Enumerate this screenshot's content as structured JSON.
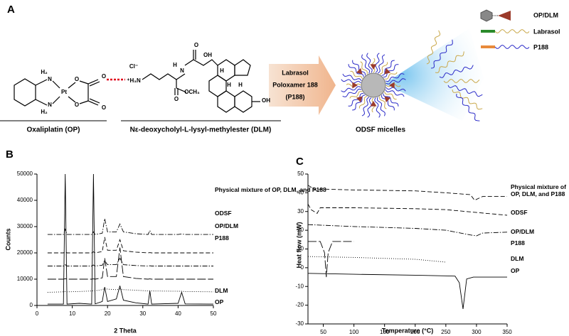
{
  "panel_a": {
    "label": "A",
    "op_caption": "Oxaliplatin (OP)",
    "dlm_caption": "Nε-deoxycholyl-L-lysyl-methylester (DLM)",
    "arrow_text": [
      "Labrasol",
      "Poloxamer 188",
      "(P188)"
    ],
    "micelle_caption": "ODSF micelles",
    "legend": [
      "OP/DLM",
      "Labrasol",
      "P188"
    ],
    "structure_labels": [
      "H₂",
      "N",
      "Pt",
      "N",
      "H₂",
      "O",
      "O",
      "O",
      "O",
      "Cl⁻",
      "⁺H₃N",
      "H",
      "N",
      "O",
      "O",
      "OCH₃",
      "OH",
      "OH",
      "H",
      "H",
      "H"
    ]
  },
  "panel_labels": [
    "B",
    "C"
  ],
  "chart_data": [
    {
      "type": "line",
      "xlabel": "2 Theta",
      "ylabel": "Counts",
      "xlim": [
        0,
        50
      ],
      "ylim": [
        0,
        50000
      ],
      "xticks": [
        0,
        10,
        20,
        30,
        40,
        50
      ],
      "yticks": [
        0,
        10000,
        20000,
        30000,
        40000,
        50000
      ],
      "x": [
        3,
        7.5,
        8,
        8.5,
        12,
        15.5,
        16,
        16.5,
        18.5,
        19.2,
        20,
        22.5,
        23.5,
        24.5,
        28,
        31.5,
        32,
        32.5,
        40,
        41,
        42,
        50
      ],
      "series": [
        {
          "name": "OP",
          "color": "#000000",
          "dash": "solid",
          "values": [
            500,
            500,
            50000,
            500,
            800,
            500,
            50000,
            600,
            1500,
            7000,
            1500,
            2500,
            7500,
            2000,
            1000,
            500,
            5500,
            500,
            800,
            5000,
            600,
            500
          ]
        },
        {
          "name": "DLM",
          "color": "#000000",
          "dash": "dotted",
          "values": [
            5000,
            5200,
            5300,
            5200,
            5300,
            5500,
            5600,
            5600,
            6000,
            6500,
            6200,
            6000,
            6300,
            6000,
            5800,
            5500,
            5600,
            5500,
            5400,
            5400,
            5300,
            5200
          ]
        },
        {
          "name": "P188",
          "color": "#000000",
          "dash": "longdash",
          "values": [
            10000,
            10000,
            10200,
            10000,
            10000,
            10000,
            10100,
            10000,
            10500,
            18000,
            11000,
            11000,
            22000,
            11000,
            10300,
            10000,
            10100,
            10000,
            10000,
            10000,
            10000,
            10000
          ]
        },
        {
          "name": "OP/DLM",
          "color": "#000000",
          "dash": "dashdot",
          "values": [
            15000,
            15000,
            15500,
            15000,
            15000,
            15000,
            15400,
            15000,
            15300,
            17000,
            15500,
            15500,
            18000,
            15500,
            15200,
            15000,
            15100,
            15000,
            15000,
            15000,
            15000,
            15000
          ]
        },
        {
          "name": "ODSF",
          "color": "#000000",
          "dash": "dashed",
          "values": [
            20000,
            20000,
            20500,
            20000,
            20000,
            20000,
            20400,
            20000,
            20500,
            26000,
            21000,
            21000,
            25000,
            20800,
            20300,
            20000,
            20100,
            20000,
            20000,
            20000,
            20000,
            20000
          ]
        },
        {
          "name": "Physical mixture of OP, DLM, and P188",
          "color": "#000000",
          "dash": "dashdot",
          "values": [
            27000,
            27000,
            29000,
            27000,
            27000,
            27000,
            28000,
            27000,
            27500,
            33000,
            28000,
            28000,
            31000,
            28000,
            27300,
            27000,
            28500,
            27000,
            27000,
            27200,
            27000,
            27000
          ]
        }
      ]
    },
    {
      "type": "line",
      "xlabel": "Temperature (°C)",
      "ylabel": "Heat flow (mW)",
      "xlim": [
        25,
        350
      ],
      "ylim": [
        -30,
        50
      ],
      "xticks": [
        50,
        100,
        150,
        200,
        250,
        300,
        350
      ],
      "yticks": [
        -30,
        -20,
        -10,
        0,
        10,
        20,
        30,
        40,
        50
      ],
      "series": [
        {
          "name": "OP",
          "color": "#000000",
          "dash": "solid",
          "x": [
            25,
            100,
            200,
            265,
            272,
            278,
            284,
            295,
            350
          ],
          "values": [
            -3,
            -3.5,
            -4,
            -4.5,
            -8,
            -22,
            -6,
            -5,
            -5
          ]
        },
        {
          "name": "DLM",
          "color": "#000000",
          "dash": "dotted",
          "x": [
            25,
            100,
            150,
            200,
            250
          ],
          "values": [
            6,
            5.5,
            5,
            4.5,
            3
          ]
        },
        {
          "name": "P188",
          "color": "#000000",
          "dash": "longdash",
          "x": [
            25,
            45,
            52,
            55,
            58,
            65,
            100
          ],
          "values": [
            14,
            14,
            8,
            -5,
            8,
            14,
            14
          ]
        },
        {
          "name": "OP/DLM",
          "color": "#000000",
          "dash": "dashdot",
          "x": [
            25,
            100,
            200,
            250,
            290,
            300,
            310,
            350
          ],
          "values": [
            23,
            22,
            21,
            20,
            17.5,
            17,
            18.5,
            19
          ]
        },
        {
          "name": "ODSF",
          "color": "#000000",
          "dash": "dashed",
          "x": [
            25,
            30,
            40,
            45,
            100,
            200,
            250,
            300,
            350
          ],
          "values": [
            34,
            31,
            29,
            32,
            32,
            31.5,
            31,
            29.5,
            28
          ]
        },
        {
          "name": "Physical mixture of OP, DLM, and P188",
          "color": "#000000",
          "dash": "dashed",
          "x": [
            25,
            30,
            40,
            45,
            100,
            200,
            250,
            290,
            297,
            310,
            350
          ],
          "values": [
            44,
            43,
            41,
            42,
            41.5,
            41,
            40,
            39,
            36,
            38,
            38
          ]
        }
      ]
    }
  ]
}
